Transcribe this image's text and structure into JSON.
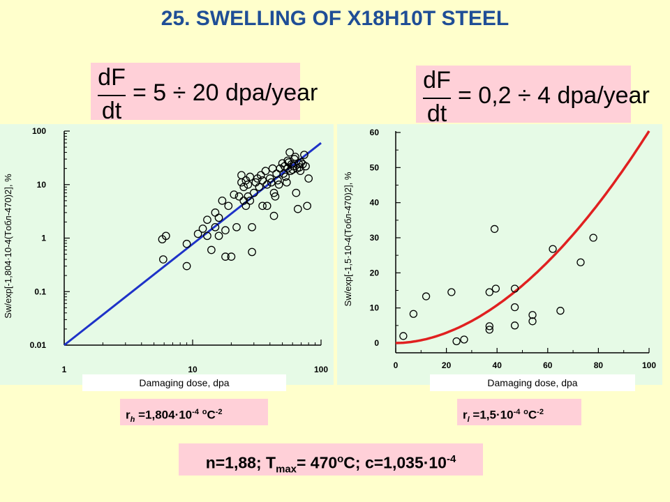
{
  "title": "25. SWELLING OF X18H10T STEEL",
  "formula_left": {
    "num": "dF",
    "den": "dt",
    "rhs": "= 5 ÷ 20 dpa/year"
  },
  "formula_right": {
    "num": "dF",
    "den": "dt",
    "rhs": "= 0,2 ÷ 4 dpa/year"
  },
  "param_left": {
    "prefix": "r",
    "sub": "h",
    "value": " =1,804·10",
    "exp": "-4",
    "unit_pre": " ",
    "unit_sup": "o",
    "unit": "C",
    "unit_exp": "-2"
  },
  "param_right": {
    "prefix": "r",
    "sub": "l",
    "value": " =1,5·10",
    "exp": "-4",
    "unit_pre": " ",
    "unit_sup": "o",
    "unit": "C",
    "unit_exp": "-2"
  },
  "bottom": {
    "t1": "n=1,88; T",
    "t1sub": "max",
    "t2": "= 470",
    "t2sup": "o",
    "t3": "C; c=1,035·10",
    "t3sup": "-4"
  },
  "colors": {
    "fit_left": "#1E32C8",
    "fit_right": "#E02020",
    "title": "#1F4E96"
  },
  "chart_data": [
    {
      "type": "scatter",
      "xlabel": "Damaging dose, dpa",
      "ylabel": "Sw/exp[-1,804·10-4(Tобл-470)2], %",
      "xscale": "log",
      "yscale": "log",
      "xlim": [
        1,
        100
      ],
      "ylim": [
        0.01,
        100
      ],
      "xticks": [
        "1",
        "10",
        "100"
      ],
      "yticks": [
        "0.01",
        "0.1",
        "1",
        "10",
        "100"
      ],
      "fit": {
        "x": [
          1,
          100
        ],
        "y": [
          0.01,
          60
        ]
      },
      "points": [
        [
          5.8,
          0.95
        ],
        [
          6.2,
          1.1
        ],
        [
          5.9,
          0.4
        ],
        [
          9,
          0.78
        ],
        [
          9,
          0.3
        ],
        [
          11,
          1.2
        ],
        [
          12,
          1.5
        ],
        [
          13,
          1.1
        ],
        [
          13,
          2.2
        ],
        [
          14,
          0.6
        ],
        [
          15,
          1.6
        ],
        [
          15,
          3
        ],
        [
          16,
          1.1
        ],
        [
          16,
          2.4
        ],
        [
          17,
          5
        ],
        [
          18,
          1.4
        ],
        [
          18,
          0.45
        ],
        [
          19,
          4
        ],
        [
          20,
          0.45
        ],
        [
          21,
          6.5
        ],
        [
          22,
          1.6
        ],
        [
          23,
          6
        ],
        [
          24,
          15
        ],
        [
          24,
          11
        ],
        [
          25,
          9
        ],
        [
          25,
          5
        ],
        [
          26,
          4
        ],
        [
          26,
          12
        ],
        [
          27,
          10
        ],
        [
          27,
          6
        ],
        [
          28,
          5
        ],
        [
          28,
          14
        ],
        [
          29,
          1.6
        ],
        [
          29,
          0.55
        ],
        [
          30,
          7
        ],
        [
          31,
          11
        ],
        [
          32,
          13
        ],
        [
          33,
          9
        ],
        [
          34,
          15
        ],
        [
          35,
          12
        ],
        [
          35,
          4
        ],
        [
          37,
          18
        ],
        [
          38,
          10
        ],
        [
          38,
          4
        ],
        [
          40,
          13
        ],
        [
          41,
          11
        ],
        [
          42,
          20
        ],
        [
          43,
          7
        ],
        [
          43,
          2.6
        ],
        [
          44,
          6
        ],
        [
          45,
          16
        ],
        [
          46,
          12
        ],
        [
          47,
          10
        ],
        [
          48,
          20
        ],
        [
          50,
          25
        ],
        [
          51,
          16
        ],
        [
          52,
          22
        ],
        [
          53,
          14
        ],
        [
          54,
          11
        ],
        [
          55,
          28
        ],
        [
          55,
          20
        ],
        [
          56,
          26
        ],
        [
          57,
          40
        ],
        [
          58,
          18
        ],
        [
          59,
          24
        ],
        [
          60,
          19
        ],
        [
          61,
          22
        ],
        [
          62,
          30
        ],
        [
          63,
          33
        ],
        [
          64,
          7
        ],
        [
          65,
          20
        ],
        [
          66,
          3.5
        ],
        [
          67,
          25
        ],
        [
          68,
          21
        ],
        [
          69,
          18
        ],
        [
          70,
          26
        ],
        [
          72,
          24
        ],
        [
          74,
          36
        ],
        [
          76,
          22
        ],
        [
          78,
          4
        ],
        [
          80,
          13
        ]
      ]
    },
    {
      "type": "scatter",
      "xlabel": "Damaging dose, dpa",
      "ylabel": "Sw/exp[-1,5·10-4(Tобл-470)2], %",
      "xlim": [
        0,
        100
      ],
      "ylim": [
        0,
        60
      ],
      "xticks": [
        "0",
        "20",
        "40",
        "60",
        "80",
        "100"
      ],
      "yticks": [
        "0",
        "10",
        "20",
        "30",
        "40",
        "50",
        "60"
      ],
      "fit": {
        "form": "power",
        "coef": 0.0105,
        "n": 1.88
      },
      "points": [
        [
          3,
          2
        ],
        [
          7,
          8.3
        ],
        [
          12,
          13.3
        ],
        [
          22,
          14.5
        ],
        [
          24,
          0.5
        ],
        [
          27,
          1
        ],
        [
          37,
          14.5
        ],
        [
          37,
          4.8
        ],
        [
          37,
          3.8
        ],
        [
          39,
          32.5
        ],
        [
          39.5,
          15.5
        ],
        [
          47,
          15.5
        ],
        [
          47,
          10.2
        ],
        [
          47,
          5
        ],
        [
          54,
          8
        ],
        [
          54,
          6.2
        ],
        [
          62,
          26.8
        ],
        [
          65,
          9.2
        ],
        [
          73,
          23
        ],
        [
          78,
          30
        ]
      ]
    }
  ]
}
